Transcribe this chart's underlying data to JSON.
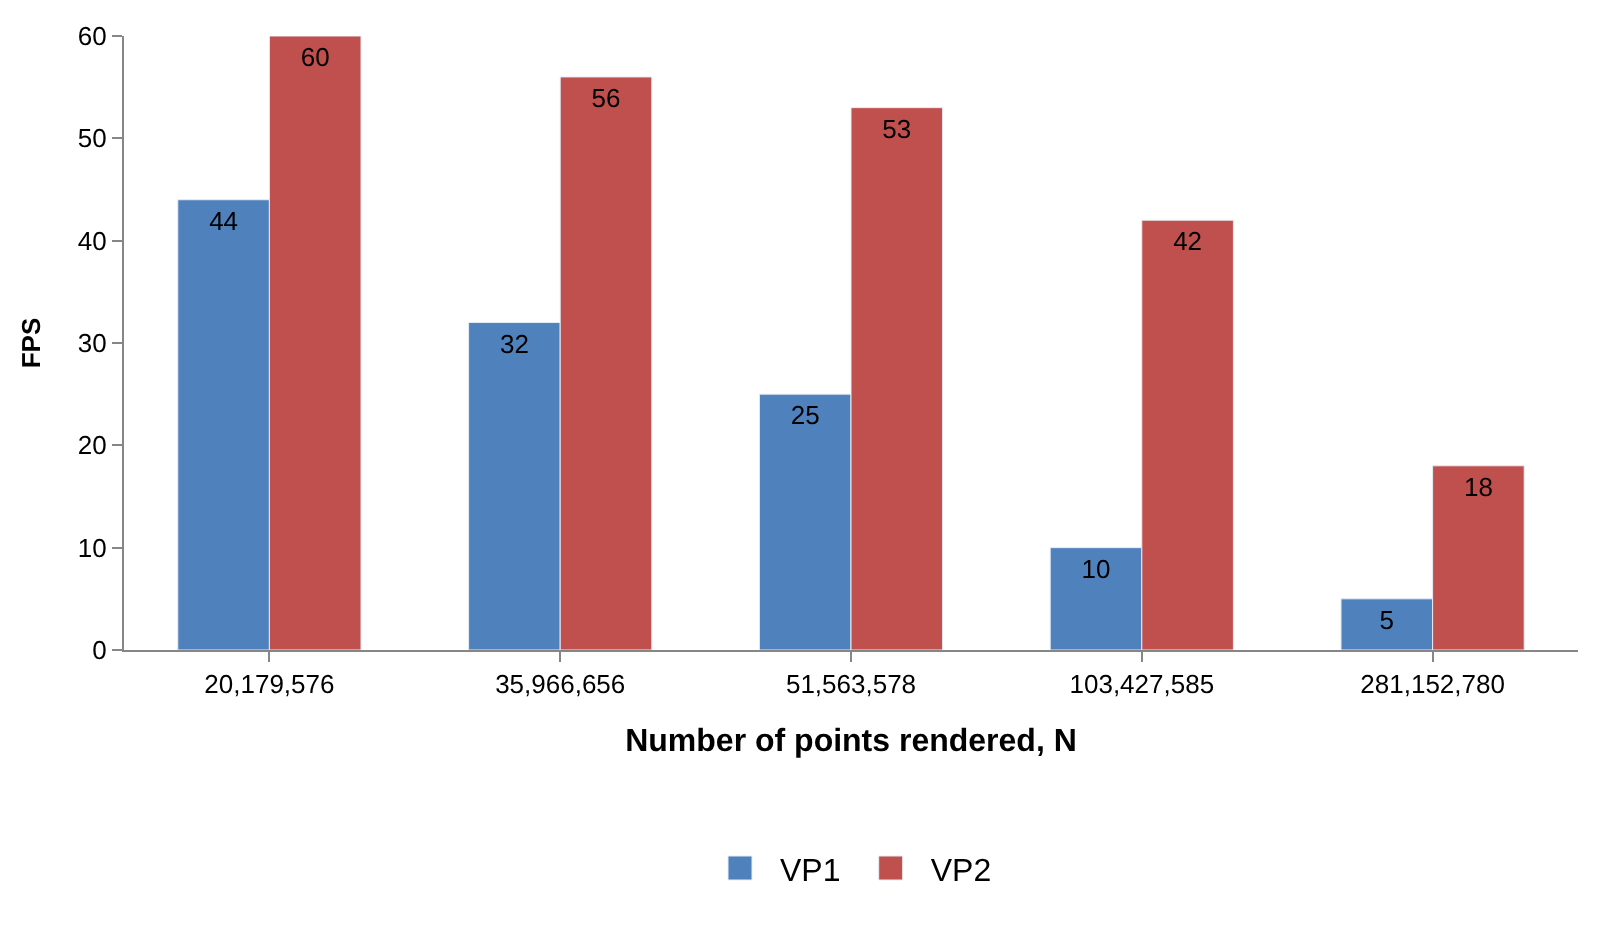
{
  "chart_data": {
    "type": "bar",
    "xlabel": "Number of points rendered, N",
    "ylabel": "FPS",
    "categories": [
      "20,179,576",
      "35,966,656",
      "51,563,578",
      "103,427,585",
      "281,152,780"
    ],
    "series": [
      {
        "name": "VP1",
        "color": "#4f81bd",
        "values": [
          44,
          32,
          25,
          10,
          5
        ]
      },
      {
        "name": "VP2",
        "color": "#c0504d",
        "values": [
          60,
          56,
          53,
          42,
          18
        ]
      }
    ],
    "ylim": [
      0,
      60
    ],
    "yticks": [
      0,
      10,
      20,
      30,
      40,
      50,
      60
    ],
    "legend": "bottom",
    "data_labels": true
  }
}
